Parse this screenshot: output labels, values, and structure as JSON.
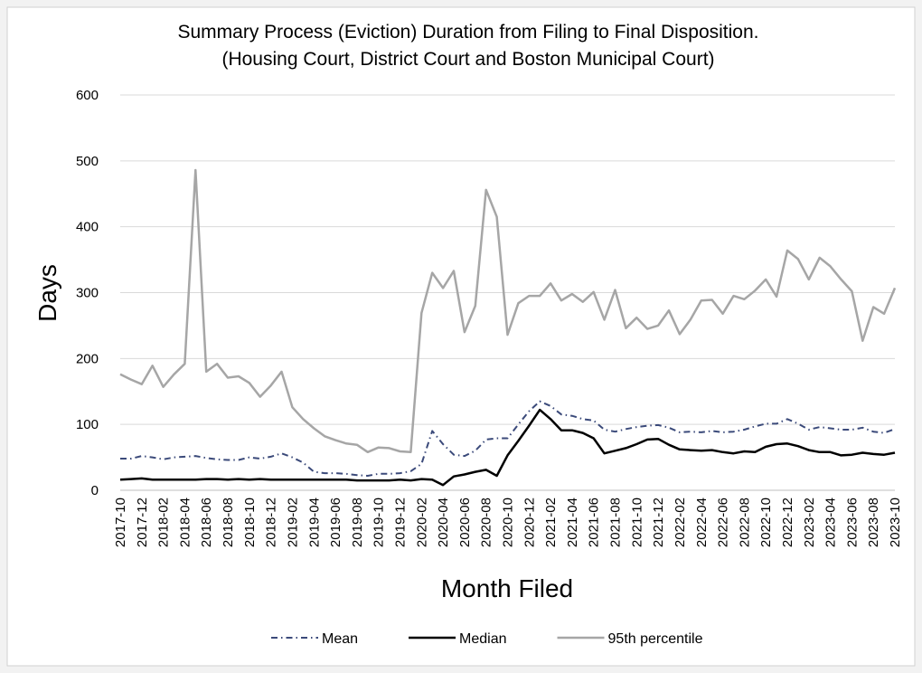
{
  "chart_data": {
    "type": "line",
    "title": "Summary Process (Eviction) Duration from Filing to Final Disposition.",
    "subtitle": "(Housing Court, District Court and Boston Municipal Court)",
    "y_label": "Days",
    "x_label": "Month Filed",
    "categories": [
      "2017-10",
      null,
      "2017-12",
      null,
      "2018-02",
      null,
      "2018-04",
      null,
      "2018-06",
      null,
      "2018-08",
      null,
      "2018-10",
      null,
      "2018-12",
      null,
      "2019-02",
      null,
      "2019-04",
      null,
      "2019-06",
      null,
      "2019-08",
      null,
      "2019-10",
      null,
      "2019-12",
      null,
      "2020-02",
      null,
      "2020-04",
      null,
      "2020-06",
      null,
      "2020-08",
      null,
      "2020-10",
      null,
      "2020-12",
      null,
      "2021-02",
      null,
      "2021-04",
      null,
      "2021-06",
      null,
      "2021-08",
      null,
      "2021-10",
      null,
      "2021-12",
      null,
      "2022-02",
      null,
      "2022-04",
      null,
      "2022-06",
      null,
      "2022-08",
      null,
      "2022-10",
      null,
      "2022-12",
      null,
      "2023-02",
      null,
      "2023-04",
      null,
      "2023-06",
      null,
      "2023-08",
      null,
      "2023-10"
    ],
    "series": [
      {
        "name": "Mean",
        "color": "#3b4a7a",
        "dashed": true,
        "values": [
          48,
          48,
          52,
          50,
          47,
          50,
          51,
          52,
          49,
          47,
          46,
          46,
          50,
          48,
          51,
          56,
          50,
          42,
          28,
          26,
          26,
          25,
          23,
          22,
          25,
          25,
          26,
          29,
          40,
          90,
          70,
          54,
          52,
          60,
          77,
          79,
          79,
          100,
          120,
          135,
          128,
          115,
          113,
          108,
          106,
          92,
          89,
          93,
          96,
          98,
          99,
          95,
          88,
          89,
          88,
          90,
          88,
          89,
          92,
          97,
          101,
          101,
          108,
          101,
          92,
          96,
          94,
          92,
          92,
          95,
          89,
          87,
          93
        ]
      },
      {
        "name": "Median",
        "color": "#000000",
        "dashed": false,
        "values": [
          16,
          17,
          18,
          16,
          16,
          16,
          16,
          16,
          17,
          17,
          16,
          17,
          16,
          17,
          16,
          16,
          16,
          16,
          16,
          16,
          16,
          16,
          15,
          15,
          15,
          15,
          16,
          15,
          17,
          16,
          8,
          21,
          24,
          28,
          31,
          22,
          53,
          75,
          98,
          122,
          108,
          91,
          91,
          87,
          79,
          56,
          60,
          64,
          70,
          77,
          78,
          69,
          62,
          61,
          60,
          61,
          58,
          56,
          59,
          58,
          66,
          70,
          71,
          67,
          61,
          58,
          58,
          53,
          54,
          57,
          55,
          54,
          57
        ]
      },
      {
        "name": "95th percentile",
        "color": "#a6a6a6",
        "dashed": false,
        "values": [
          176,
          168,
          161,
          189,
          157,
          176,
          192,
          486,
          180,
          192,
          171,
          173,
          163,
          142,
          159,
          180,
          126,
          108,
          94,
          82,
          76,
          71,
          69,
          58,
          65,
          64,
          59,
          58,
          269,
          330,
          307,
          333,
          240,
          280,
          456,
          415,
          236,
          284,
          295,
          295,
          314,
          288,
          298,
          286,
          301,
          259,
          304,
          246,
          262,
          245,
          250,
          273,
          237,
          259,
          288,
          289,
          268,
          295,
          290,
          303,
          320,
          294,
          364,
          351,
          320,
          353,
          340,
          320,
          302,
          227,
          278,
          268,
          307
        ]
      }
    ],
    "ylim": [
      0,
      600
    ],
    "yticks": [
      0,
      100,
      200,
      300,
      400,
      500,
      600
    ],
    "grid": true,
    "legend": "bottom"
  }
}
